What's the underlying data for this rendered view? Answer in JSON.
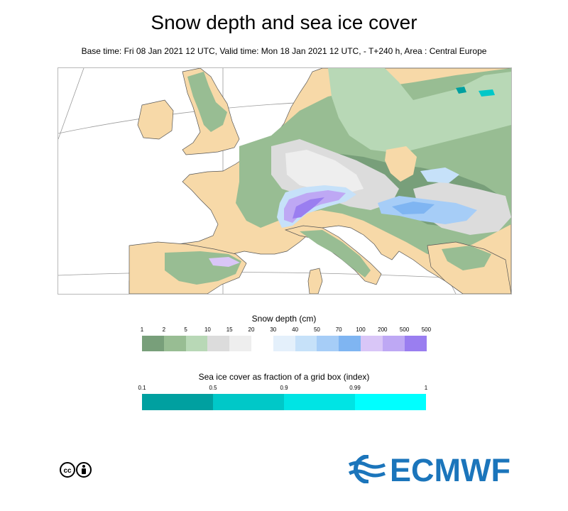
{
  "title": "Snow depth and sea ice cover",
  "subtitle": "Base time: Fri 08 Jan 2021 12 UTC, Valid time: Mon 18 Jan 2021 12 UTC, - T+240 h, Area : Central Europe",
  "snow_legend": {
    "title": "Snow depth (cm)",
    "ticks": [
      "1",
      "2",
      "5",
      "10",
      "15",
      "20",
      "30",
      "40",
      "50",
      "70",
      "100",
      "200",
      "500",
      "500"
    ],
    "colors": [
      "#789f7a",
      "#98bd93",
      "#b8d8b6",
      "#dcdcdc",
      "#eeeeee",
      "#ffffff",
      "#e4f0fb",
      "#c6e1f9",
      "#a6cdf7",
      "#7fb5f2",
      "#d9c6f7",
      "#bea8f4",
      "#9a7ef0"
    ]
  },
  "ice_legend": {
    "title": "Sea ice cover as fraction of a grid box (index)",
    "ticks": [
      "0.1",
      "0.5",
      "0.9",
      "0.99",
      "1"
    ],
    "colors": [
      "#00a0a0",
      "#00c8c8",
      "#00e4e4",
      "#00ffff"
    ]
  },
  "map": {
    "land_color": "#f7d9a8",
    "sea_color": "#ffffff",
    "coast_color": "#555555"
  },
  "logo": {
    "text": "ECMWF",
    "color": "#1b75bb"
  },
  "license_icon": "cc-by-icon"
}
